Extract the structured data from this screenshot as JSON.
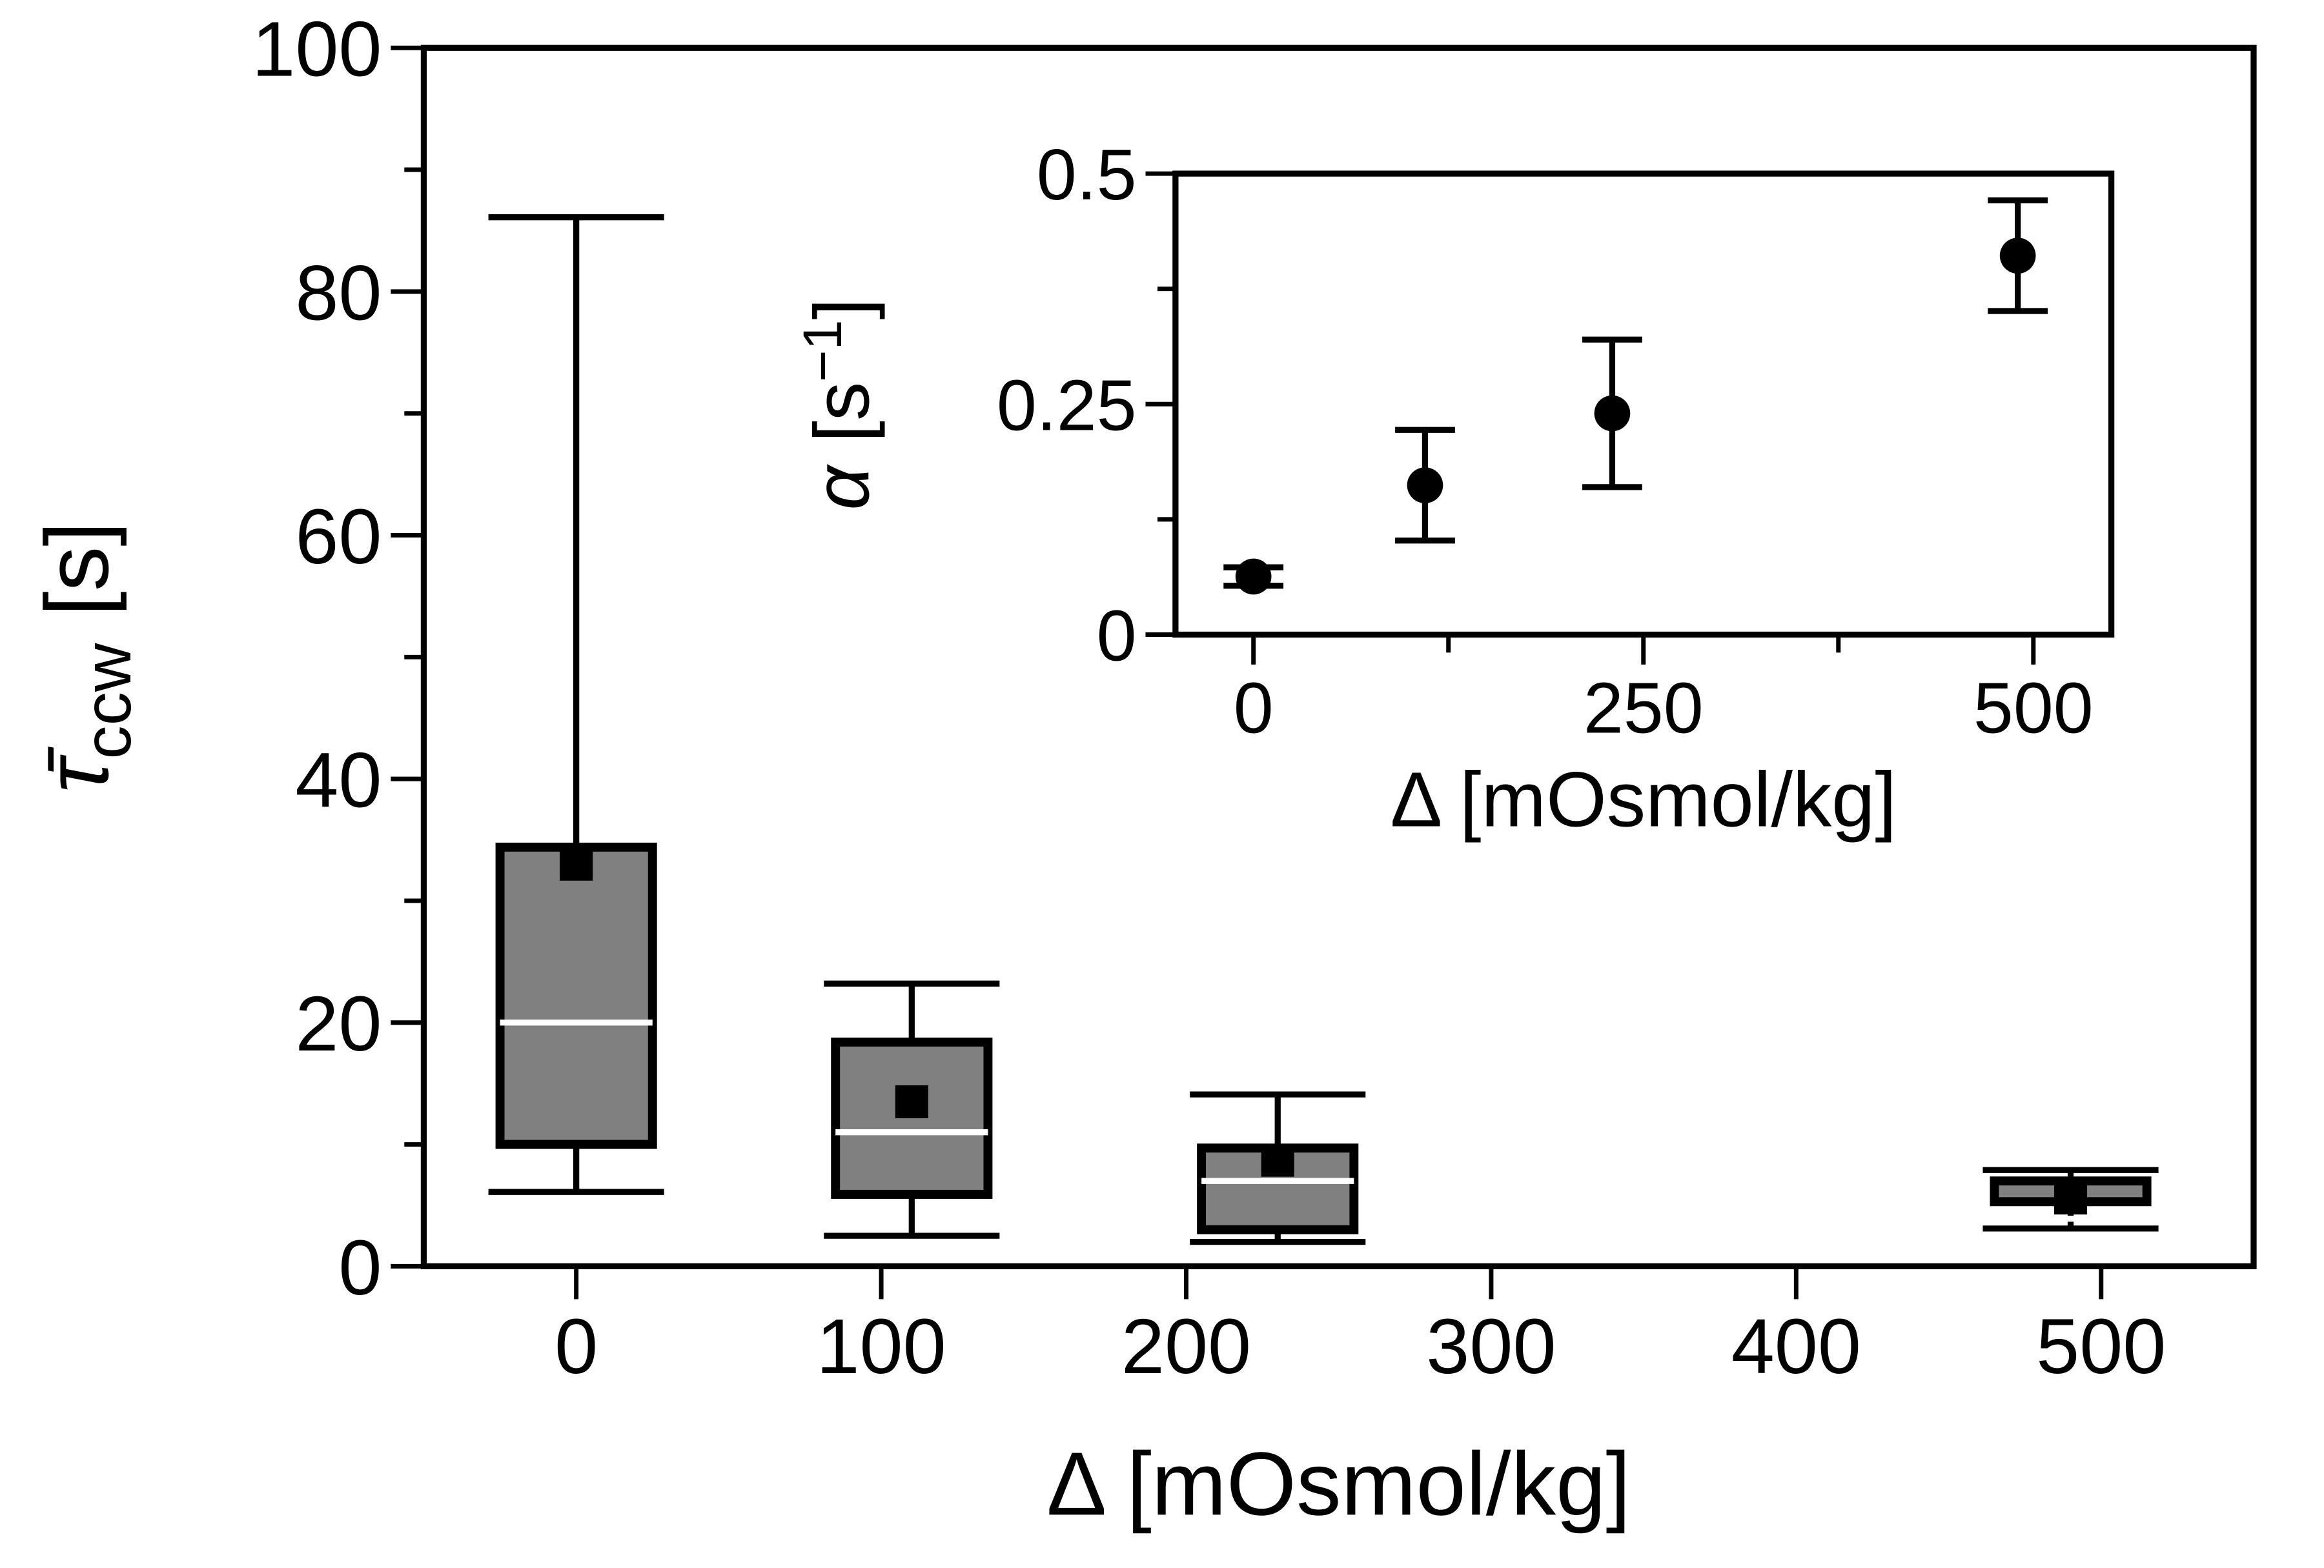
{
  "chart_data": [
    {
      "type": "box",
      "xlabel": "Δ [mOsmol/kg]",
      "ylabel": {
        "symbol": "τ̄",
        "sub": "ccw",
        "unit": "[s]"
      },
      "xlim": [
        -50,
        550
      ],
      "xticks": [
        0,
        100,
        200,
        300,
        400,
        500
      ],
      "ylim": [
        0,
        100
      ],
      "yticks": [
        0,
        20,
        40,
        60,
        80,
        100
      ],
      "yticks_minor": [
        10,
        30,
        50,
        70,
        90
      ],
      "color": "#808080",
      "x": [
        0,
        110,
        230,
        490
      ],
      "whisker_low": [
        6.1,
        2.5,
        2,
        3.1
      ],
      "q1": [
        10,
        5.9,
        3,
        5.3
      ],
      "median": [
        20,
        11,
        7,
        3.9
      ],
      "q3": [
        34.4,
        18.4,
        9.7,
        7
      ],
      "whisker_high": [
        86.1,
        23.2,
        14.1,
        7.9
      ],
      "mean": [
        33,
        13.5,
        8.7,
        5.6
      ]
    },
    {
      "type": "scatter",
      "xlabel": "Δ [mOsmol/kg]",
      "ylabel": {
        "symbol": "α",
        "unit": "[s",
        "sup": "−1",
        "close": "]"
      },
      "xlim": [
        -50,
        550
      ],
      "xticks": [
        0,
        250,
        500
      ],
      "xticks_minor": [
        125,
        375
      ],
      "ylim": [
        0,
        0.5
      ],
      "yticks": [
        0,
        0.25,
        0.5
      ],
      "yticks_minor": [
        0.125,
        0.375
      ],
      "color": "#000000",
      "x": [
        0,
        110,
        230,
        490
      ],
      "values": [
        0.063,
        0.162,
        0.24,
        0.411
      ],
      "errors": [
        0.01,
        0.06,
        0.08,
        0.06
      ]
    }
  ]
}
